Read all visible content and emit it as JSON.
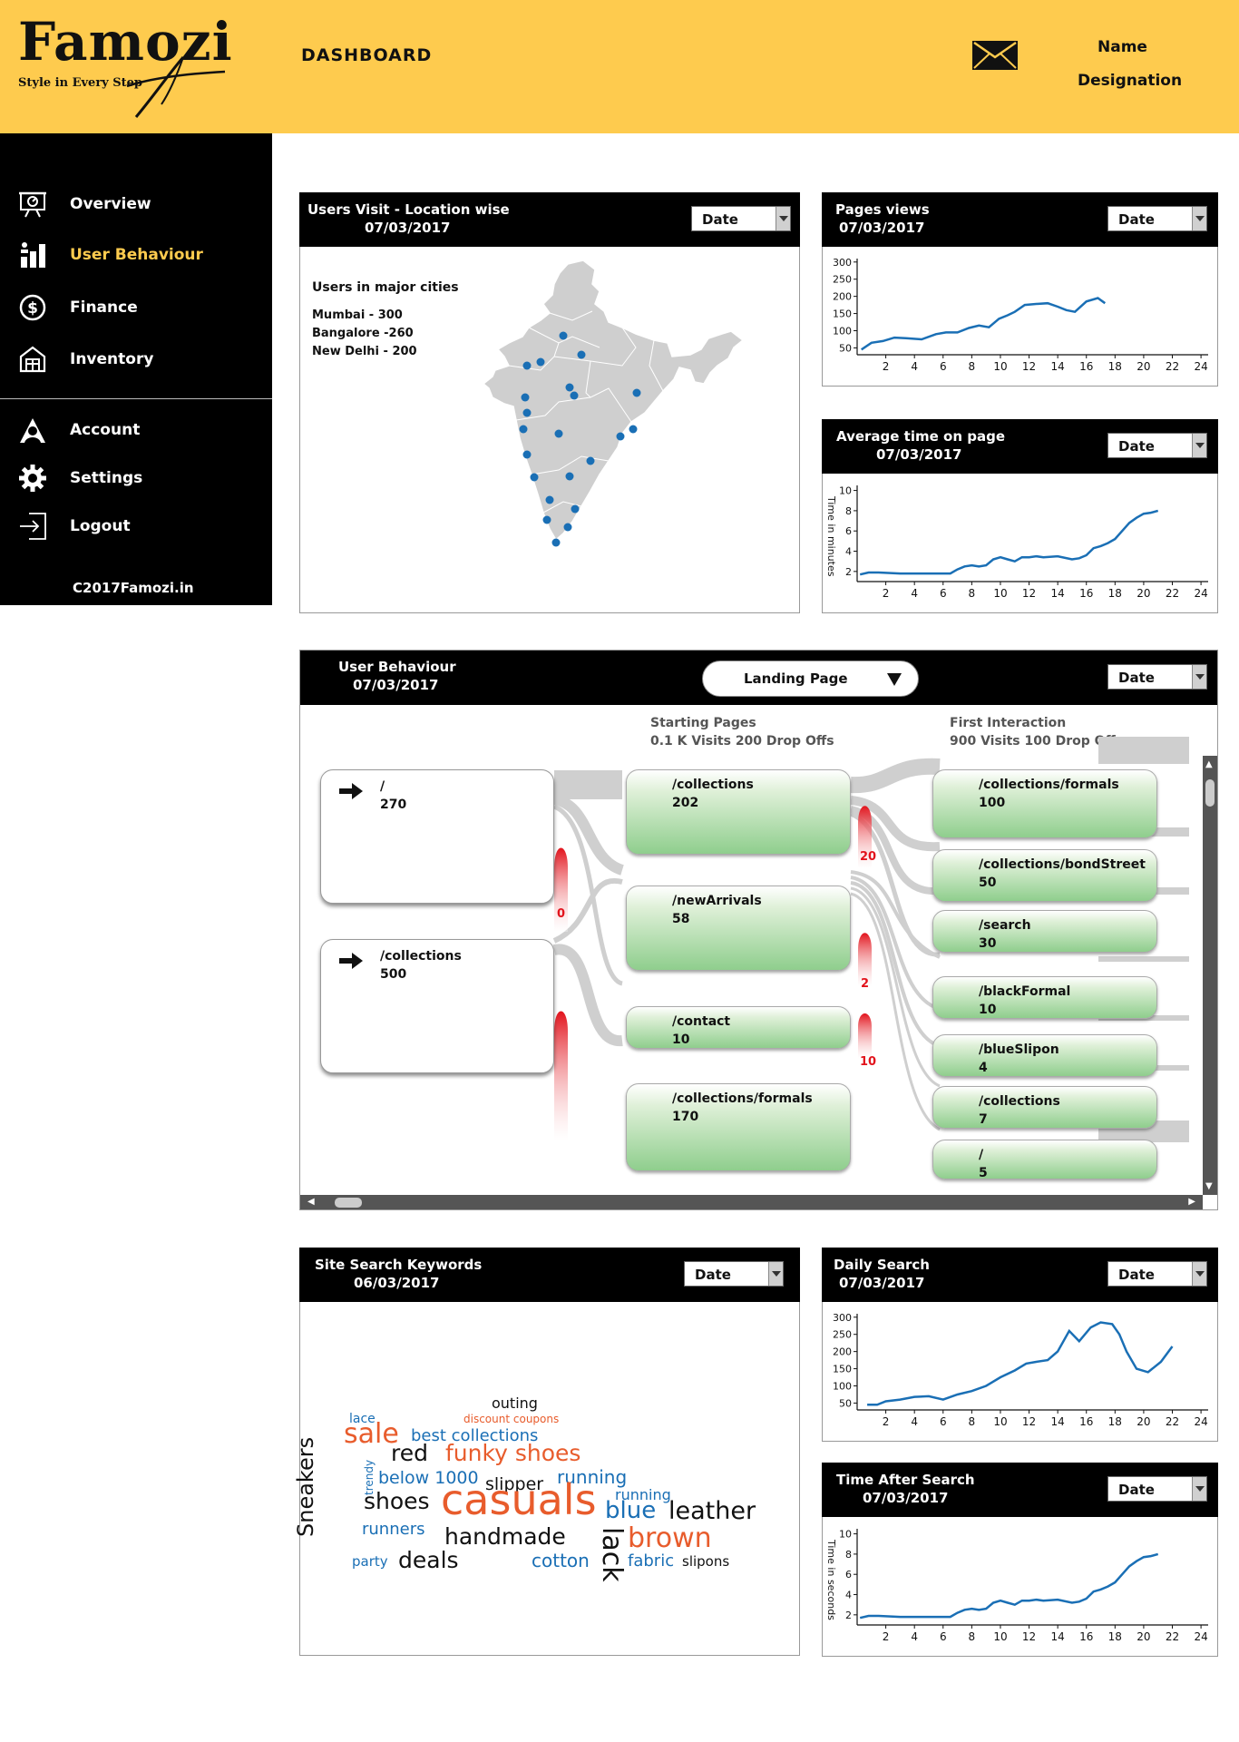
{
  "brand": {
    "name": "Famozi",
    "tagline": "Style in Every Step"
  },
  "header": {
    "title": "DASHBOARD",
    "user_name": "Name",
    "user_designation": "Designation"
  },
  "sidebar": {
    "items": [
      {
        "label": "Overview",
        "icon": "presentation-icon"
      },
      {
        "label": "User Behaviour",
        "icon": "bar-chart-icon",
        "active": true
      },
      {
        "label": "Finance",
        "icon": "dollar-icon"
      },
      {
        "label": "Inventory",
        "icon": "warehouse-icon"
      },
      {
        "label": "Account",
        "icon": "account-icon"
      },
      {
        "label": "Settings",
        "icon": "gear-icon"
      },
      {
        "label": "Logout",
        "icon": "logout-icon"
      }
    ],
    "footer": "C2017Famozi.in"
  },
  "colors": {
    "accent": "#fecb4e",
    "line": "#1a6fb5",
    "drop": "#e2131c",
    "word_orange": "#e85c2c",
    "word_blue": "#1a6fb5"
  },
  "date_select": "Date",
  "map_panel": {
    "title": "Users Visit -  Location wise",
    "date": "07/03/2017",
    "subtitle": "Users in major cities",
    "cities": [
      "Mumbai - 300",
      "Bangalore -260",
      "New Delhi - 200"
    ]
  },
  "flow": {
    "title": "User Behaviour",
    "date": "07/03/2017",
    "dropdown": "Landing Page",
    "col2_title": "Starting Pages",
    "col2_sub": "0.1 K Visits 200 Drop Offs",
    "col3_title": "First Interaction",
    "col3_sub": "900  Visits 100 Drop Offs",
    "sources": [
      {
        "label": "/",
        "value": "270"
      },
      {
        "label": "/collections",
        "value": "500"
      }
    ],
    "starting": [
      {
        "label": "/collections",
        "value": "202"
      },
      {
        "label": "/newArrivals",
        "value": "58"
      },
      {
        "label": "/contact",
        "value": "10"
      },
      {
        "label": "/collections/formals",
        "value": "170"
      }
    ],
    "interactions": [
      {
        "label": "/collections/formals",
        "value": "100"
      },
      {
        "label": "/collections/bondStreet",
        "value": "50"
      },
      {
        "label": "/search",
        "value": "30"
      },
      {
        "label": "/blackFormal",
        "value": "10"
      },
      {
        "label": "/blueSlipon",
        "value": "4"
      },
      {
        "label": "/collections",
        "value": "7"
      },
      {
        "label": "/",
        "value": "5"
      }
    ],
    "drops": [
      "0",
      "20",
      "2",
      "10"
    ]
  },
  "keywords": {
    "title": "Site Search Keywords",
    "date": "06/03/2017",
    "words": [
      {
        "text": "outing",
        "color": "#111"
      },
      {
        "text": "lace",
        "color": "#1a6fb5"
      },
      {
        "text": "discount coupons",
        "color": "#e85c2c"
      },
      {
        "text": "sale",
        "color": "#e85c2c"
      },
      {
        "text": "best collections",
        "color": "#1a6fb5"
      },
      {
        "text": "Sneakers",
        "color": "#111"
      },
      {
        "text": "trendy",
        "color": "#1a6fb5"
      },
      {
        "text": "red",
        "color": "#111"
      },
      {
        "text": "funky shoes",
        "color": "#e85c2c"
      },
      {
        "text": "below 1000",
        "color": "#1a6fb5"
      },
      {
        "text": "running",
        "color": "#1a6fb5"
      },
      {
        "text": "slipper",
        "color": "#111"
      },
      {
        "text": "running",
        "color": "#1a6fb5"
      },
      {
        "text": "shoes",
        "color": "#111"
      },
      {
        "text": "casuals",
        "color": "#e85c2c"
      },
      {
        "text": "blue",
        "color": "#1a6fb5"
      },
      {
        "text": "leather",
        "color": "#111"
      },
      {
        "text": "runners",
        "color": "#1a6fb5"
      },
      {
        "text": "handmade",
        "color": "#111"
      },
      {
        "text": "lack",
        "color": "#111"
      },
      {
        "text": "brown",
        "color": "#e85c2c"
      },
      {
        "text": "party",
        "color": "#1a6fb5"
      },
      {
        "text": "deals",
        "color": "#111"
      },
      {
        "text": "cotton",
        "color": "#1a6fb5"
      },
      {
        "text": "fabric",
        "color": "#1a6fb5"
      },
      {
        "text": "slipons",
        "color": "#111"
      }
    ]
  },
  "chart_data": [
    {
      "type": "line",
      "title": "Pages views",
      "date": "07/03/2017",
      "ylabel": "",
      "xticks": [
        2,
        4,
        6,
        8,
        10,
        12,
        14,
        16,
        18,
        20,
        22,
        24
      ],
      "yticks": [
        50,
        100,
        150,
        200,
        250,
        300
      ],
      "xlim": [
        0,
        24.5
      ],
      "ylim": [
        30,
        310
      ],
      "x": [
        0.3,
        1,
        1.8,
        2.6,
        3.4,
        4.5,
        5.5,
        6.2,
        7,
        7.8,
        8.5,
        9.2,
        9.9,
        10.5,
        11,
        11.7,
        12.5,
        13.3,
        14,
        14.6,
        15.2,
        16,
        16.8,
        17.3
      ],
      "y": [
        45,
        65,
        70,
        80,
        78,
        75,
        90,
        95,
        95,
        108,
        115,
        110,
        135,
        145,
        155,
        175,
        178,
        180,
        170,
        160,
        155,
        185,
        195,
        180
      ]
    },
    {
      "type": "line",
      "title": "Average time on page",
      "date": "07/03/2017",
      "ylabel": "Time in minutes",
      "xticks": [
        2,
        4,
        6,
        8,
        10,
        12,
        14,
        16,
        18,
        20,
        22,
        24
      ],
      "yticks": [
        2,
        4,
        6,
        8,
        10
      ],
      "xlim": [
        0,
        24.5
      ],
      "ylim": [
        1,
        10.5
      ],
      "x": [
        0.2,
        0.8,
        1.5,
        3,
        5,
        6.5,
        7,
        7.5,
        8,
        8.5,
        9,
        9.5,
        10,
        10.5,
        11,
        11.5,
        12,
        12.5,
        13,
        14,
        15,
        15.5,
        16,
        16.5,
        17,
        17.5,
        18,
        18.5,
        19,
        19.5,
        20,
        20.5,
        21
      ],
      "y": [
        1.7,
        1.9,
        1.9,
        1.8,
        1.8,
        1.8,
        2.2,
        2.5,
        2.6,
        2.5,
        2.6,
        3.2,
        3.4,
        3.2,
        3,
        3.4,
        3.4,
        3.5,
        3.4,
        3.5,
        3.2,
        3.3,
        3.6,
        4.3,
        4.5,
        4.8,
        5.2,
        6,
        6.8,
        7.3,
        7.7,
        7.8,
        8
      ]
    },
    {
      "type": "line",
      "title": "Daily Search",
      "date": "07/03/2017",
      "ylabel": "",
      "xticks": [
        2,
        4,
        6,
        8,
        10,
        12,
        14,
        16,
        18,
        20,
        22,
        24
      ],
      "yticks": [
        50,
        100,
        150,
        200,
        250,
        300
      ],
      "xlim": [
        0,
        24.5
      ],
      "ylim": [
        30,
        310
      ],
      "x": [
        0.7,
        1.4,
        2,
        3,
        4,
        5,
        6,
        7,
        8,
        9,
        10,
        11,
        11.8,
        12.5,
        13.3,
        14,
        14.8,
        15.5,
        16.3,
        17,
        17.8,
        18.3,
        18.8,
        19.5,
        20.3,
        21.2,
        22
      ],
      "y": [
        45,
        45,
        55,
        60,
        68,
        70,
        60,
        75,
        85,
        100,
        125,
        145,
        165,
        170,
        175,
        200,
        260,
        230,
        270,
        285,
        280,
        250,
        200,
        150,
        140,
        170,
        215
      ]
    },
    {
      "type": "line",
      "title": "Time After Search",
      "date": "07/03/2017",
      "ylabel": "Time in seconds",
      "xticks": [
        2,
        4,
        6,
        8,
        10,
        12,
        14,
        16,
        18,
        20,
        22,
        24
      ],
      "yticks": [
        2,
        4,
        6,
        8,
        10
      ],
      "xlim": [
        0,
        24.5
      ],
      "ylim": [
        1,
        10.5
      ],
      "x": [
        0.2,
        0.8,
        1.5,
        3,
        5,
        6.5,
        7,
        7.5,
        8,
        8.5,
        9,
        9.5,
        10,
        10.5,
        11,
        11.5,
        12,
        12.5,
        13,
        14,
        15,
        15.5,
        16,
        16.5,
        17,
        17.5,
        18,
        18.5,
        19,
        19.5,
        20,
        20.5,
        21
      ],
      "y": [
        1.7,
        1.9,
        1.9,
        1.8,
        1.8,
        1.8,
        2.2,
        2.5,
        2.6,
        2.5,
        2.6,
        3.2,
        3.4,
        3.2,
        3,
        3.4,
        3.4,
        3.5,
        3.4,
        3.5,
        3.2,
        3.3,
        3.6,
        4.3,
        4.5,
        4.8,
        5.2,
        6,
        6.8,
        7.3,
        7.7,
        7.8,
        8
      ]
    }
  ]
}
